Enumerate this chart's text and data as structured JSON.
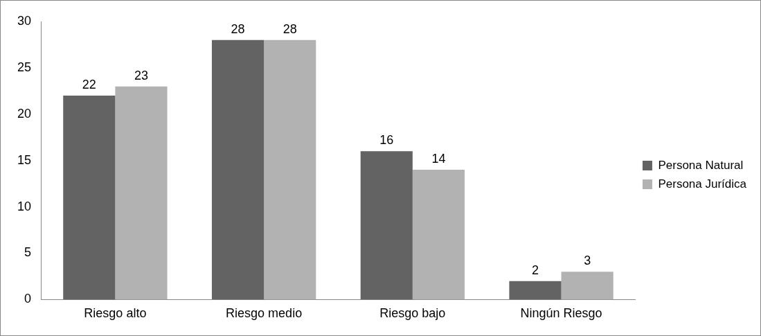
{
  "chart_data": {
    "type": "bar",
    "categories": [
      "Riesgo alto",
      "Riesgo medio",
      "Riesgo bajo",
      "Ningún Riesgo"
    ],
    "series": [
      {
        "name": "Persona Natural",
        "color": "#636363",
        "values": [
          22,
          28,
          16,
          2
        ]
      },
      {
        "name": "Persona Jurídica",
        "color": "#b2b2b2",
        "values": [
          23,
          28,
          14,
          3
        ]
      }
    ],
    "ylim": [
      0,
      30
    ],
    "yticks": [
      0,
      5,
      10,
      15,
      20,
      25,
      30
    ],
    "grid": false,
    "legend": "right",
    "data_labels": true
  }
}
